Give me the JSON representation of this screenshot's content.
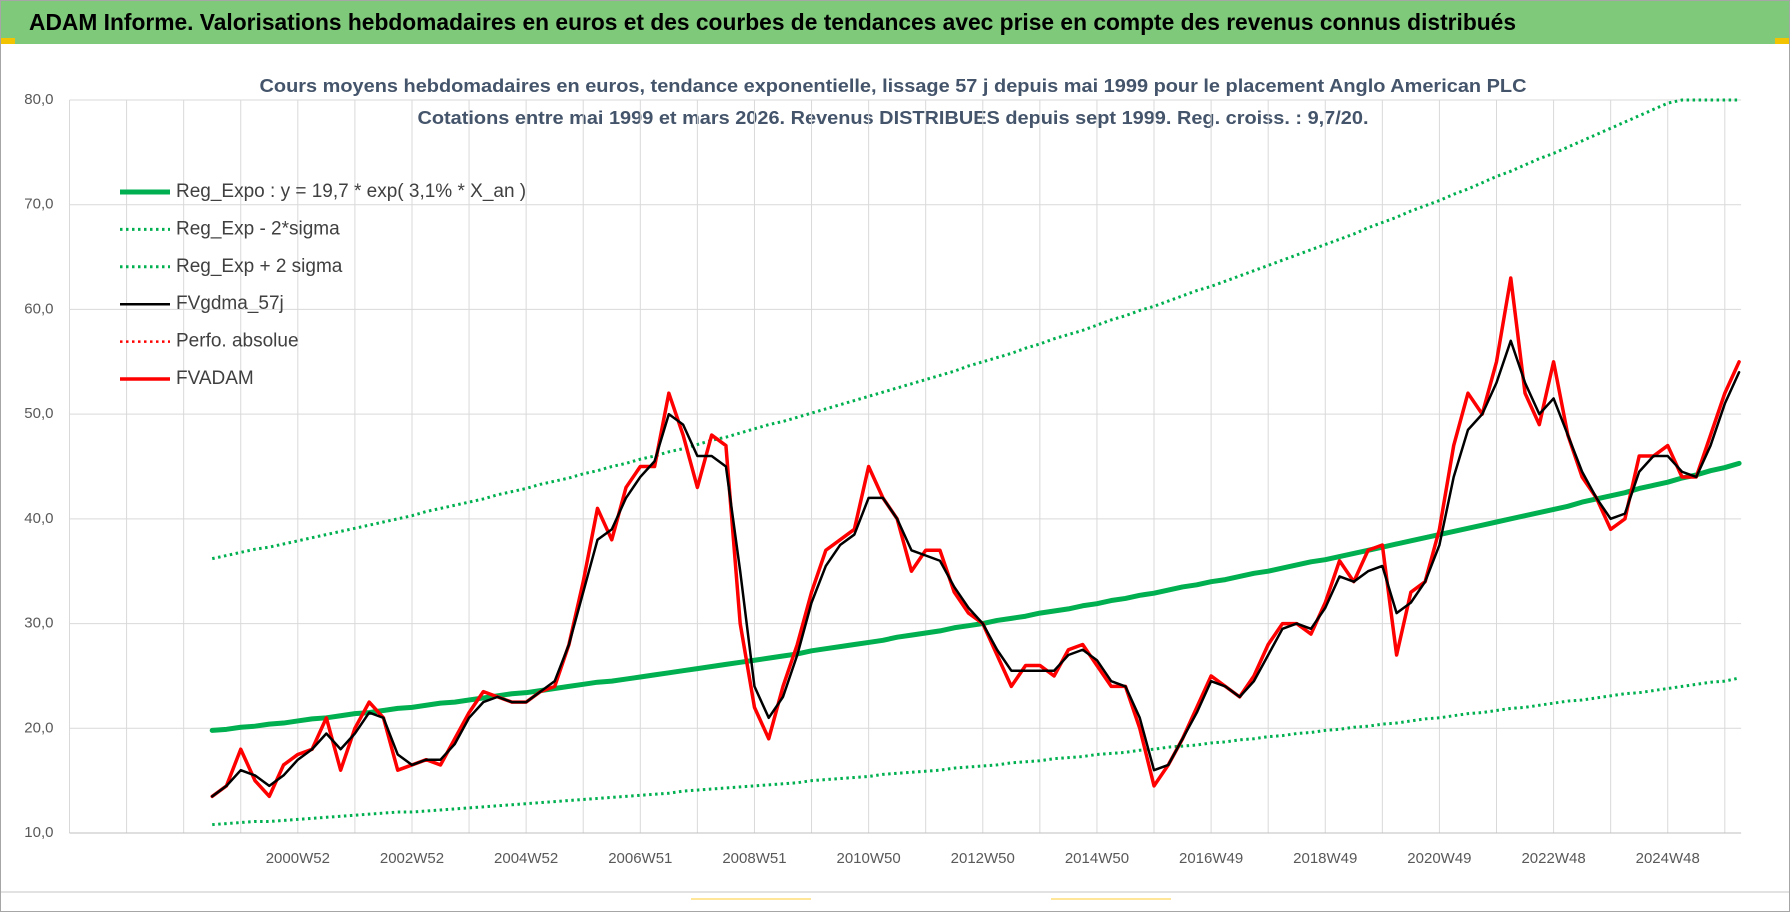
{
  "header": {
    "title": "ADAM Informe. Valorisations hebdomadaires en euros et des courbes de tendances avec prise en compte des revenus connus distribués"
  },
  "chart_data": {
    "type": "line",
    "title": "Cours moyens hebdomadaires en euros, tendance exponentielle, lissage 57 j depuis mai 1999 pour le placement Anglo American PLC",
    "subtitle": "Cotations entre mai 1999 et mars 2026.  Revenus DISTRIBUES depuis sept 1999. Reg. croiss. : 9,7/20.",
    "categories": [
      null,
      null,
      null,
      null,
      null,
      null,
      null,
      null,
      null,
      null,
      null,
      null,
      null,
      null,
      null,
      null,
      "2000W52",
      null,
      null,
      null,
      null,
      null,
      null,
      null,
      "2002W52",
      null,
      null,
      null,
      null,
      null,
      null,
      null,
      "2004W52",
      null,
      null,
      null,
      null,
      null,
      null,
      null,
      "2006W51",
      null,
      null,
      null,
      null,
      null,
      null,
      null,
      "2008W51",
      null,
      null,
      null,
      null,
      null,
      null,
      null,
      "2010W50",
      null,
      null,
      null,
      null,
      null,
      null,
      null,
      "2012W50",
      null,
      null,
      null,
      null,
      null,
      null,
      null,
      "2014W50",
      null,
      null,
      null,
      null,
      null,
      null,
      null,
      "2016W49",
      null,
      null,
      null,
      null,
      null,
      null,
      null,
      "2018W49",
      null,
      null,
      null,
      null,
      null,
      null,
      null,
      "2020W49",
      null,
      null,
      null,
      null,
      null,
      null,
      null,
      "2022W48",
      null,
      null,
      null,
      null,
      null,
      null,
      null,
      "2024W48",
      null,
      null,
      null,
      null,
      null
    ],
    "ylim": [
      10,
      80
    ],
    "yticks": [
      {
        "value": 10,
        "label": "10,0"
      },
      {
        "value": 20,
        "label": "20,0"
      },
      {
        "value": 30,
        "label": "30,0"
      },
      {
        "value": 40,
        "label": "40,0"
      },
      {
        "value": 50,
        "label": "50,0"
      },
      {
        "value": 60,
        "label": "60,0"
      },
      {
        "value": 70,
        "label": "70,0"
      },
      {
        "value": 80,
        "label": "80,0"
      }
    ],
    "grid": true,
    "legend": "top-left",
    "series": [
      {
        "name": "Reg_Expo : y = 19,7 * exp( 3,1% *  X_an )",
        "color": "#00b050",
        "style": "solid",
        "values": [
          null,
          null,
          null,
          null,
          null,
          null,
          null,
          null,
          null,
          null,
          19.8,
          19.9,
          20.1,
          20.2,
          20.4,
          20.5,
          20.7,
          20.9,
          21.0,
          21.2,
          21.4,
          21.5,
          21.7,
          21.9,
          22.0,
          22.2,
          22.4,
          22.5,
          22.7,
          22.9,
          23.1,
          23.3,
          23.4,
          23.6,
          23.8,
          24.0,
          24.2,
          24.4,
          24.5,
          24.7,
          24.9,
          25.1,
          25.3,
          25.5,
          25.7,
          25.9,
          26.1,
          26.3,
          26.5,
          26.7,
          26.9,
          27.1,
          27.4,
          27.6,
          27.8,
          28.0,
          28.2,
          28.4,
          28.7,
          28.9,
          29.1,
          29.3,
          29.6,
          29.8,
          30.0,
          30.3,
          30.5,
          30.7,
          31.0,
          31.2,
          31.4,
          31.7,
          31.9,
          32.2,
          32.4,
          32.7,
          32.9,
          33.2,
          33.5,
          33.7,
          34.0,
          34.2,
          34.5,
          34.8,
          35.0,
          35.3,
          35.6,
          35.9,
          36.1,
          36.4,
          36.7,
          37.0,
          37.3,
          37.6,
          37.9,
          38.2,
          38.5,
          38.8,
          39.1,
          39.4,
          39.7,
          40.0,
          40.3,
          40.6,
          40.9,
          41.2,
          41.6,
          41.9,
          42.2,
          42.5,
          42.9,
          43.2,
          43.5,
          43.9,
          44.2,
          44.6,
          44.9,
          45.3
        ]
      },
      {
        "name": "Reg_Exp - 2*sigma",
        "color": "#00b050",
        "style": "dotted",
        "values": [
          null,
          null,
          null,
          null,
          null,
          null,
          null,
          null,
          null,
          null,
          10.8,
          10.9,
          11.0,
          11.1,
          11.1,
          11.2,
          11.3,
          11.4,
          11.5,
          11.6,
          11.7,
          11.8,
          11.9,
          12.0,
          12.0,
          12.1,
          12.2,
          12.3,
          12.4,
          12.5,
          12.6,
          12.7,
          12.8,
          12.9,
          13.0,
          13.1,
          13.2,
          13.3,
          13.4,
          13.5,
          13.6,
          13.7,
          13.8,
          14.0,
          14.1,
          14.2,
          14.3,
          14.4,
          14.5,
          14.6,
          14.7,
          14.8,
          15.0,
          15.1,
          15.2,
          15.3,
          15.4,
          15.6,
          15.7,
          15.8,
          15.9,
          16.0,
          16.2,
          16.3,
          16.4,
          16.5,
          16.7,
          16.8,
          16.9,
          17.1,
          17.2,
          17.3,
          17.5,
          17.6,
          17.7,
          17.9,
          18.0,
          18.2,
          18.3,
          18.4,
          18.6,
          18.7,
          18.9,
          19.0,
          19.2,
          19.3,
          19.5,
          19.6,
          19.8,
          19.9,
          20.1,
          20.2,
          20.4,
          20.5,
          20.7,
          20.9,
          21.0,
          21.2,
          21.4,
          21.5,
          21.7,
          21.9,
          22.0,
          22.2,
          22.4,
          22.6,
          22.7,
          22.9,
          23.1,
          23.3,
          23.4,
          23.6,
          23.8,
          24.0,
          24.2,
          24.4,
          24.5,
          24.8
        ]
      },
      {
        "name": "Reg_Exp + 2 sigma",
        "color": "#00b050",
        "style": "dotted",
        "values": [
          null,
          null,
          null,
          null,
          null,
          null,
          null,
          null,
          null,
          null,
          36.2,
          36.5,
          36.8,
          37.1,
          37.3,
          37.6,
          37.9,
          38.2,
          38.5,
          38.8,
          39.1,
          39.4,
          39.7,
          40.0,
          40.3,
          40.7,
          41.0,
          41.3,
          41.6,
          41.9,
          42.3,
          42.6,
          42.9,
          43.3,
          43.6,
          43.9,
          44.3,
          44.6,
          45.0,
          45.3,
          45.7,
          46.0,
          46.4,
          46.7,
          47.1,
          47.5,
          47.8,
          48.2,
          48.6,
          49.0,
          49.3,
          49.7,
          50.1,
          50.5,
          50.9,
          51.3,
          51.7,
          52.1,
          52.5,
          52.9,
          53.3,
          53.7,
          54.1,
          54.6,
          55.0,
          55.4,
          55.8,
          56.3,
          56.7,
          57.2,
          57.6,
          58.0,
          58.5,
          59.0,
          59.4,
          59.9,
          60.3,
          60.8,
          61.3,
          61.8,
          62.2,
          62.7,
          63.2,
          63.7,
          64.2,
          64.7,
          65.2,
          65.7,
          66.2,
          66.7,
          67.2,
          67.8,
          68.3,
          68.8,
          69.4,
          69.9,
          70.4,
          71.0,
          71.5,
          72.1,
          72.7,
          73.2,
          73.8,
          74.4,
          74.9,
          75.5,
          76.1,
          76.7,
          77.3,
          77.9,
          78.5,
          79.1,
          79.7,
          80,
          80,
          80,
          80,
          80
        ]
      },
      {
        "name": "FVgdma_57j",
        "color": "#000000",
        "style": "solid",
        "values": [
          null,
          null,
          null,
          null,
          null,
          null,
          null,
          null,
          null,
          null,
          13.5,
          14.5,
          16,
          15.5,
          14.5,
          15.5,
          17,
          18,
          19.5,
          18,
          19.5,
          21.5,
          21,
          17.5,
          16.5,
          17,
          17,
          18.5,
          21,
          22.5,
          23,
          22.5,
          22.5,
          23.5,
          24.5,
          28,
          33,
          38,
          39,
          42,
          44,
          45.5,
          50,
          49,
          46,
          46,
          45,
          35,
          24,
          21,
          23,
          27,
          32,
          35.5,
          37.5,
          38.5,
          42,
          42,
          40,
          37,
          36.5,
          36,
          33.5,
          31.5,
          30,
          27.5,
          25.5,
          25.5,
          25.5,
          25.5,
          27,
          27.5,
          26.5,
          24.5,
          24,
          21,
          16,
          16.5,
          19,
          21.5,
          24.5,
          24,
          23,
          24.5,
          27,
          29.5,
          30,
          29.5,
          31.5,
          34.5,
          34,
          35,
          35.5,
          31,
          32,
          34,
          37.5,
          44,
          48.5,
          50,
          53,
          57,
          53,
          50,
          51.5,
          48,
          44.5,
          42,
          40,
          40.5,
          44.5,
          46,
          46,
          44.5,
          44,
          47,
          51,
          54
        ]
      },
      {
        "name": "Perfo. absolue",
        "color": "#ff0000",
        "style": "dotted",
        "values": [
          null,
          null,
          null,
          null,
          null,
          null,
          null,
          null,
          null,
          null,
          null,
          null,
          null,
          null,
          null,
          null,
          null,
          null,
          null,
          null,
          null,
          null,
          null,
          null,
          null,
          null,
          null,
          null,
          null,
          null,
          null,
          null,
          null,
          null,
          null,
          null,
          null,
          null,
          null,
          null,
          null,
          null,
          null,
          null,
          null,
          null,
          null,
          null,
          null,
          null,
          null,
          null,
          null,
          null,
          null,
          null,
          null,
          null,
          null,
          null,
          null,
          null,
          null,
          null,
          null,
          null,
          null,
          null,
          null,
          null,
          null,
          null,
          null,
          null,
          null,
          null,
          null,
          null,
          null,
          null,
          null,
          null,
          null,
          null,
          null,
          null,
          null,
          null,
          null,
          null,
          null,
          null,
          null,
          null,
          null,
          null,
          null,
          null,
          null,
          null,
          null,
          null,
          null,
          null,
          null,
          null,
          null,
          null,
          null,
          null,
          null,
          null,
          null,
          null,
          null,
          null,
          null,
          null
        ]
      },
      {
        "name": "FVADAM",
        "color": "#ff0000",
        "style": "solid",
        "values": [
          null,
          null,
          null,
          null,
          null,
          null,
          null,
          null,
          null,
          null,
          13.5,
          14.5,
          18,
          15,
          13.5,
          16.5,
          17.5,
          18,
          21,
          16,
          20,
          22.5,
          21,
          16,
          16.5,
          17,
          16.5,
          19,
          21.5,
          23.5,
          23,
          22.5,
          22.5,
          23.5,
          24,
          28,
          34,
          41,
          38,
          43,
          45,
          45,
          52,
          48,
          43,
          48,
          47,
          30,
          22,
          19,
          24,
          28,
          33,
          37,
          38,
          39,
          45,
          42,
          40,
          35,
          37,
          37,
          33,
          31,
          30,
          27,
          24,
          26,
          26,
          25,
          27.5,
          28,
          26,
          24,
          24,
          20,
          14.5,
          16.5,
          19,
          22,
          25,
          24,
          23,
          25,
          28,
          30,
          30,
          29,
          32,
          36,
          34,
          37,
          37.5,
          27,
          33,
          34,
          39,
          47,
          52,
          50,
          55,
          63,
          52,
          49,
          55,
          48,
          44,
          42,
          39,
          40,
          46,
          46,
          47,
          44,
          44,
          48,
          52,
          55
        ]
      }
    ]
  }
}
